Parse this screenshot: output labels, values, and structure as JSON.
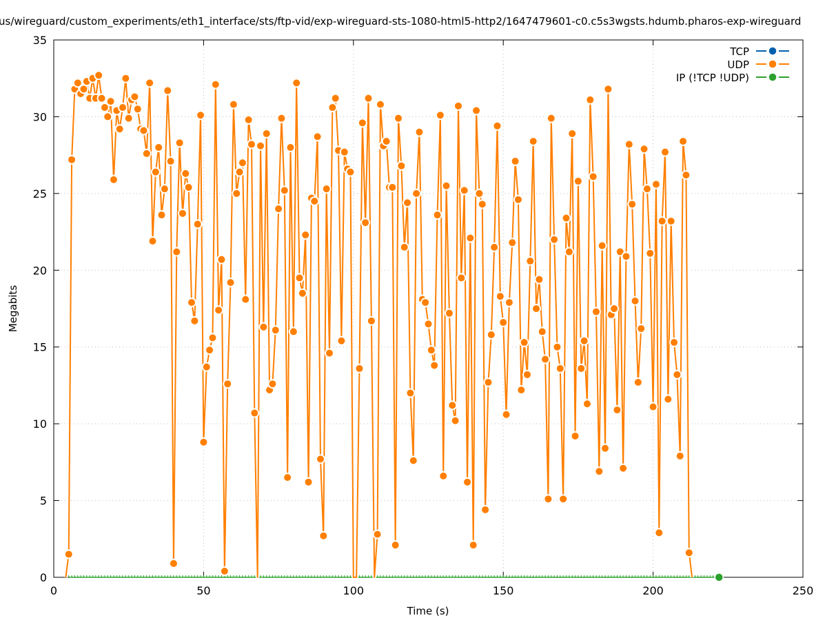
{
  "chart_data": {
    "type": "line",
    "title": "us/wireguard/custom_experiments/eth1_interface/sts/ftp-vid/exp-wireguard-sts-1080-html5-http2/1647479601-c0.c5s3wgsts.hdumb.pharos-exp-wireguard",
    "xlabel": "Time (s)",
    "ylabel": "Megabits",
    "xlim": [
      0,
      250
    ],
    "ylim": [
      0,
      35
    ],
    "xticks": [
      "0",
      "50",
      "100",
      "150",
      "200",
      "250"
    ],
    "yticks": [
      "0",
      "5",
      "10",
      "15",
      "20",
      "25",
      "30",
      "35"
    ],
    "grid": true,
    "legend_position": "top-right",
    "legend": [
      "TCP",
      "UDP",
      "IP (!TCP  !UDP)"
    ],
    "colors": {
      "TCP": "#0060ad",
      "UDP": "#ff7f00",
      "IP": "#2ca02c"
    },
    "series": [
      {
        "name": "TCP",
        "x_start": 0,
        "values": []
      },
      {
        "name": "UDP",
        "x_start": 4,
        "x_step": 1,
        "values": [
          0,
          1.5,
          27.2,
          31.8,
          32.2,
          31.5,
          31.8,
          32.3,
          31.2,
          32.5,
          31.2,
          32.7,
          31.2,
          30.6,
          30.0,
          31.0,
          25.9,
          30.4,
          29.2,
          30.6,
          32.5,
          29.9,
          31.1,
          31.3,
          30.5,
          29.2,
          29.1,
          27.6,
          32.2,
          21.9,
          26.4,
          28.0,
          23.6,
          25.3,
          31.7,
          27.1,
          0.9,
          21.2,
          28.3,
          23.7,
          26.3,
          25.4,
          17.9,
          16.7,
          23.0,
          30.1,
          8.8,
          13.7,
          14.8,
          15.6,
          32.1,
          17.4,
          20.7,
          0.4,
          12.6,
          19.2,
          30.8,
          25.0,
          26.4,
          27.0,
          18.1,
          29.8,
          28.2,
          10.7,
          0,
          28.1,
          16.3,
          28.9,
          12.2,
          12.6,
          16.1,
          24.0,
          29.9,
          25.2,
          6.5,
          28.0,
          16.0,
          32.2,
          19.5,
          18.5,
          22.3,
          6.2,
          24.7,
          24.5,
          28.7,
          7.7,
          2.7,
          25.3,
          14.6,
          30.6,
          31.2,
          27.8,
          15.4,
          27.7,
          26.6,
          26.4,
          0,
          0,
          13.6,
          29.6,
          23.1,
          31.2,
          16.7,
          0,
          2.8,
          30.8,
          28.1,
          28.4,
          25.4,
          25.4,
          2.1,
          29.9,
          26.8,
          21.5,
          24.4,
          12.0,
          7.6,
          25.0,
          29.0,
          18.1,
          17.9,
          16.5,
          14.8,
          13.8,
          23.6,
          30.1,
          6.6,
          25.5,
          17.2,
          11.2,
          10.2,
          30.7,
          19.5,
          25.2,
          6.2,
          22.1,
          2.1,
          30.4,
          25.0,
          24.3,
          4.4,
          12.7,
          15.8,
          21.5,
          29.4,
          18.3,
          16.6,
          10.6,
          17.9,
          21.8,
          27.1,
          24.6,
          12.2,
          15.3,
          13.2,
          20.6,
          28.4,
          17.5,
          19.4,
          16.0,
          14.2,
          5.1,
          29.9,
          22.0,
          15.0,
          13.6,
          5.1,
          23.4,
          21.2,
          28.9,
          9.2,
          25.8,
          13.6,
          15.4,
          11.3,
          31.1,
          26.1,
          17.3,
          6.9,
          21.6,
          8.4,
          31.8,
          17.1,
          17.5,
          10.9,
          21.2,
          7.1,
          20.9,
          28.2,
          24.3,
          18.0,
          12.7,
          16.2,
          27.9,
          25.3,
          21.1,
          11.1,
          25.6,
          2.9,
          23.2,
          27.7,
          11.6,
          23.2,
          15.3,
          13.2,
          7.9,
          28.4,
          26.2,
          1.6,
          0
        ]
      },
      {
        "name": "IP (!TCP  !UDP)",
        "points": [
          [
            5,
            0
          ],
          [
            222,
            0
          ]
        ],
        "marker_at": 222
      }
    ]
  }
}
